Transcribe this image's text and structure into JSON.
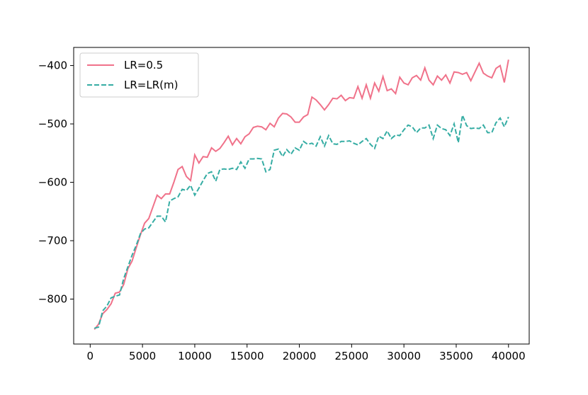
{
  "chart_data": {
    "type": "line",
    "x": [
      400,
      800,
      1200,
      1600,
      2000,
      2400,
      2800,
      3200,
      3600,
      4000,
      4400,
      4800,
      5200,
      5600,
      6000,
      6400,
      6800,
      7200,
      7600,
      8000,
      8400,
      8800,
      9200,
      9600,
      10000,
      10400,
      10800,
      11200,
      11600,
      12000,
      12400,
      12800,
      13200,
      13600,
      14000,
      14400,
      14800,
      15200,
      15600,
      16000,
      16400,
      16800,
      17200,
      17600,
      18000,
      18400,
      18800,
      19200,
      19600,
      20000,
      20400,
      20800,
      21200,
      21600,
      22000,
      22400,
      22800,
      23200,
      23600,
      24000,
      24400,
      24800,
      25200,
      25600,
      26000,
      26400,
      26800,
      27200,
      27600,
      28000,
      28400,
      28800,
      29200,
      29600,
      30000,
      30400,
      30800,
      31200,
      31600,
      32000,
      32400,
      32800,
      33200,
      33600,
      34000,
      34400,
      34800,
      35200,
      35600,
      36000,
      36400,
      36800,
      37200,
      37600,
      38000,
      38400,
      38800,
      39200,
      39600,
      40000
    ],
    "series": [
      {
        "name": "LR=0.5",
        "color": "#f0728a",
        "dash": false,
        "values": [
          -852,
          -843,
          -825,
          -818,
          -808,
          -790,
          -788,
          -775,
          -748,
          -735,
          -712,
          -690,
          -670,
          -662,
          -642,
          -622,
          -628,
          -620,
          -620,
          -600,
          -578,
          -573,
          -590,
          -597,
          -553,
          -567,
          -556,
          -557,
          -541,
          -547,
          -542,
          -532,
          -521,
          -536,
          -525,
          -534,
          -522,
          -517,
          -506,
          -504,
          -505,
          -510,
          -499,
          -505,
          -490,
          -482,
          -483,
          -488,
          -497,
          -497,
          -488,
          -484,
          -454,
          -459,
          -467,
          -476,
          -467,
          -456,
          -457,
          -451,
          -460,
          -455,
          -456,
          -436,
          -456,
          -433,
          -456,
          -430,
          -444,
          -419,
          -443,
          -440,
          -448,
          -420,
          -430,
          -433,
          -421,
          -417,
          -425,
          -404,
          -425,
          -433,
          -418,
          -425,
          -416,
          -430,
          -411,
          -412,
          -415,
          -412,
          -426,
          -411,
          -396,
          -413,
          -418,
          -421,
          -405,
          -400,
          -429,
          -390
        ]
      },
      {
        "name": "LR=LR(m)",
        "color": "#36ada4",
        "dash": true,
        "values": [
          -850,
          -848,
          -820,
          -812,
          -798,
          -795,
          -793,
          -765,
          -745,
          -725,
          -708,
          -688,
          -680,
          -678,
          -668,
          -658,
          -658,
          -668,
          -632,
          -628,
          -625,
          -612,
          -614,
          -605,
          -622,
          -610,
          -597,
          -585,
          -582,
          -598,
          -578,
          -577,
          -578,
          -576,
          -578,
          -565,
          -576,
          -560,
          -560,
          -559,
          -560,
          -582,
          -578,
          -545,
          -543,
          -556,
          -544,
          -552,
          -541,
          -545,
          -530,
          -535,
          -533,
          -538,
          -522,
          -538,
          -520,
          -534,
          -535,
          -530,
          -530,
          -529,
          -533,
          -536,
          -530,
          -525,
          -535,
          -542,
          -521,
          -525,
          -512,
          -525,
          -519,
          -520,
          -510,
          -502,
          -505,
          -515,
          -507,
          -507,
          -502,
          -525,
          -502,
          -508,
          -510,
          -520,
          -500,
          -532,
          -485,
          -503,
          -508,
          -507,
          -508,
          -502,
          -515,
          -515,
          -498,
          -490,
          -505,
          -488
        ]
      }
    ],
    "xlim": [
      -1580,
      41980
    ],
    "ylim": [
      -877,
      -369
    ],
    "xticks": [
      0,
      5000,
      10000,
      15000,
      20000,
      25000,
      30000,
      35000,
      40000
    ],
    "yticks": [
      {
        "value": -800,
        "label": "−800"
      },
      {
        "value": -700,
        "label": "−700"
      },
      {
        "value": -600,
        "label": "−600"
      },
      {
        "value": -500,
        "label": "−500"
      },
      {
        "value": -400,
        "label": "−400"
      }
    ],
    "legend": "upper left"
  }
}
